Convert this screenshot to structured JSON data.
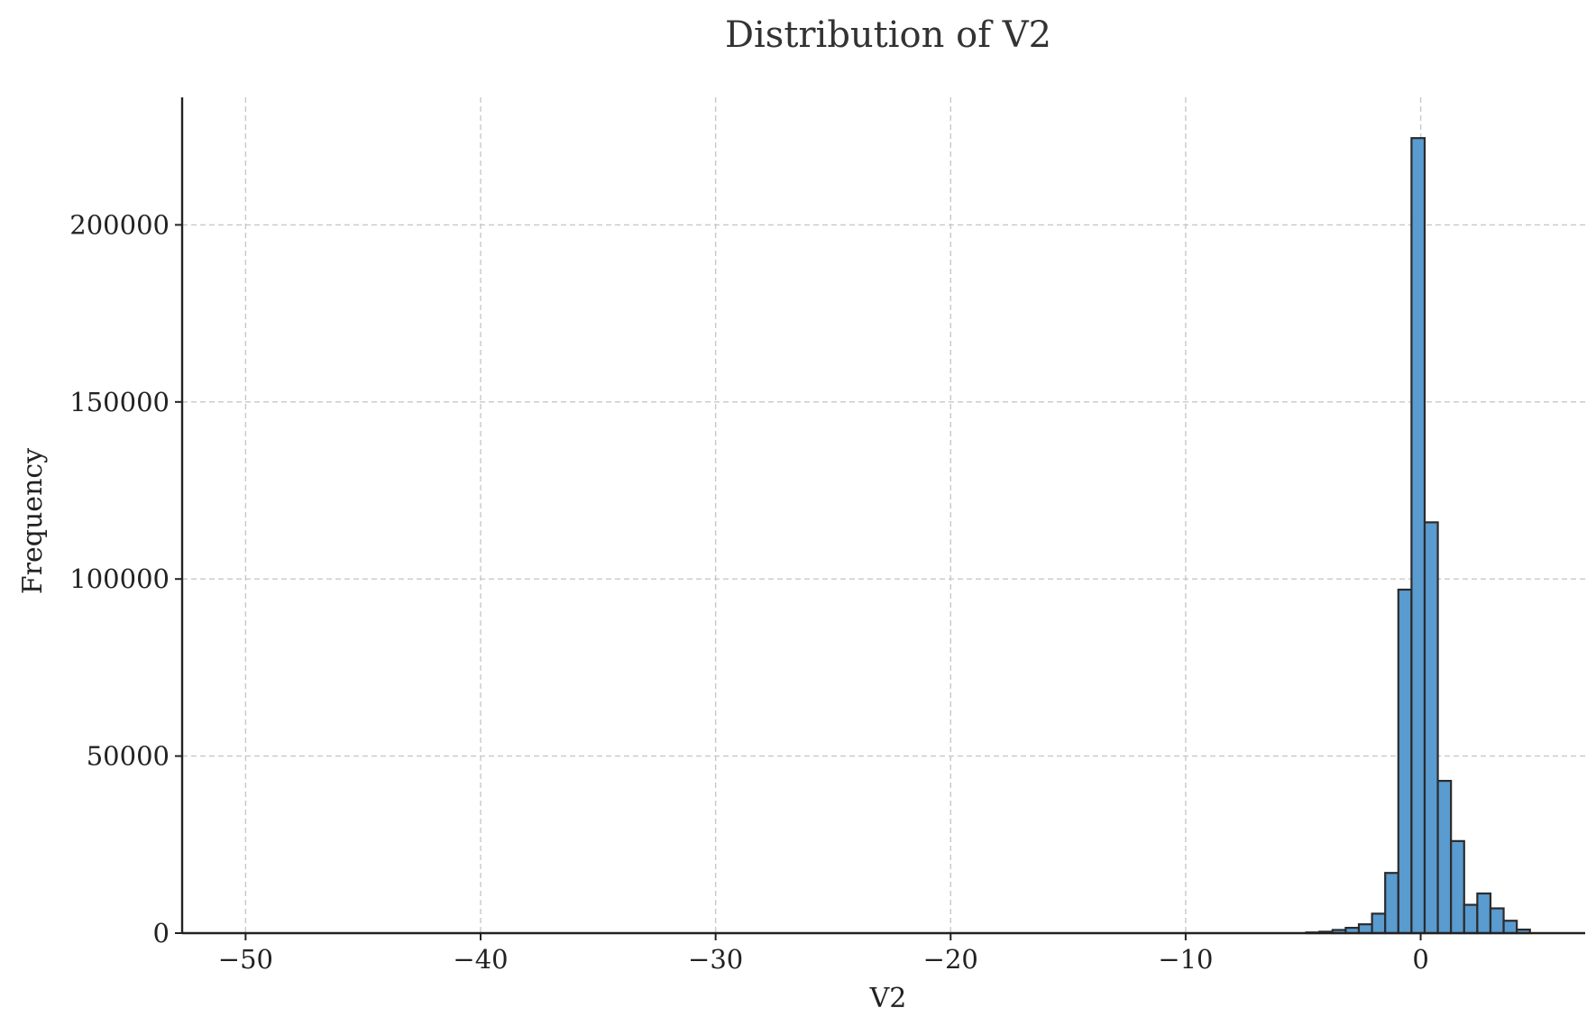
{
  "chart_data": {
    "type": "bar",
    "title": "Distribution of V2",
    "xlabel": "V2",
    "ylabel": "Frequency",
    "xlim": [
      -52.7,
      7
    ],
    "ylim": [
      0,
      236000
    ],
    "x_ticks": [
      -50,
      -40,
      -30,
      -20,
      -10,
      0
    ],
    "x_tick_labels": [
      "−50",
      "−40",
      "−30",
      "−20",
      "−10",
      "0"
    ],
    "y_ticks": [
      0,
      50000,
      100000,
      150000,
      200000
    ],
    "y_tick_labels": [
      "0",
      "50000",
      "100000",
      "150000",
      "200000"
    ],
    "grid": true,
    "legend": "none",
    "bar_color": "#5a9bd0",
    "edge_color": "#2b2b2b",
    "bins": [
      {
        "x0": -4.87,
        "x1": -4.31,
        "value": 200
      },
      {
        "x0": -4.31,
        "x1": -3.75,
        "value": 400
      },
      {
        "x0": -3.75,
        "x1": -3.19,
        "value": 900
      },
      {
        "x0": -3.19,
        "x1": -2.63,
        "value": 1500
      },
      {
        "x0": -2.63,
        "x1": -2.07,
        "value": 2500
      },
      {
        "x0": -2.07,
        "x1": -1.51,
        "value": 5500
      },
      {
        "x0": -1.51,
        "x1": -0.95,
        "value": 17000
      },
      {
        "x0": -0.95,
        "x1": -0.39,
        "value": 97000
      },
      {
        "x0": -0.39,
        "x1": 0.17,
        "value": 224500
      },
      {
        "x0": 0.17,
        "x1": 0.73,
        "value": 116000
      },
      {
        "x0": 0.73,
        "x1": 1.29,
        "value": 43000
      },
      {
        "x0": 1.29,
        "x1": 1.85,
        "value": 26000
      },
      {
        "x0": 1.85,
        "x1": 2.41,
        "value": 8000
      },
      {
        "x0": 2.41,
        "x1": 2.97,
        "value": 11200
      },
      {
        "x0": 2.97,
        "x1": 3.53,
        "value": 7000
      },
      {
        "x0": 3.53,
        "x1": 4.09,
        "value": 3500
      },
      {
        "x0": 4.09,
        "x1": 4.65,
        "value": 1000
      }
    ]
  }
}
